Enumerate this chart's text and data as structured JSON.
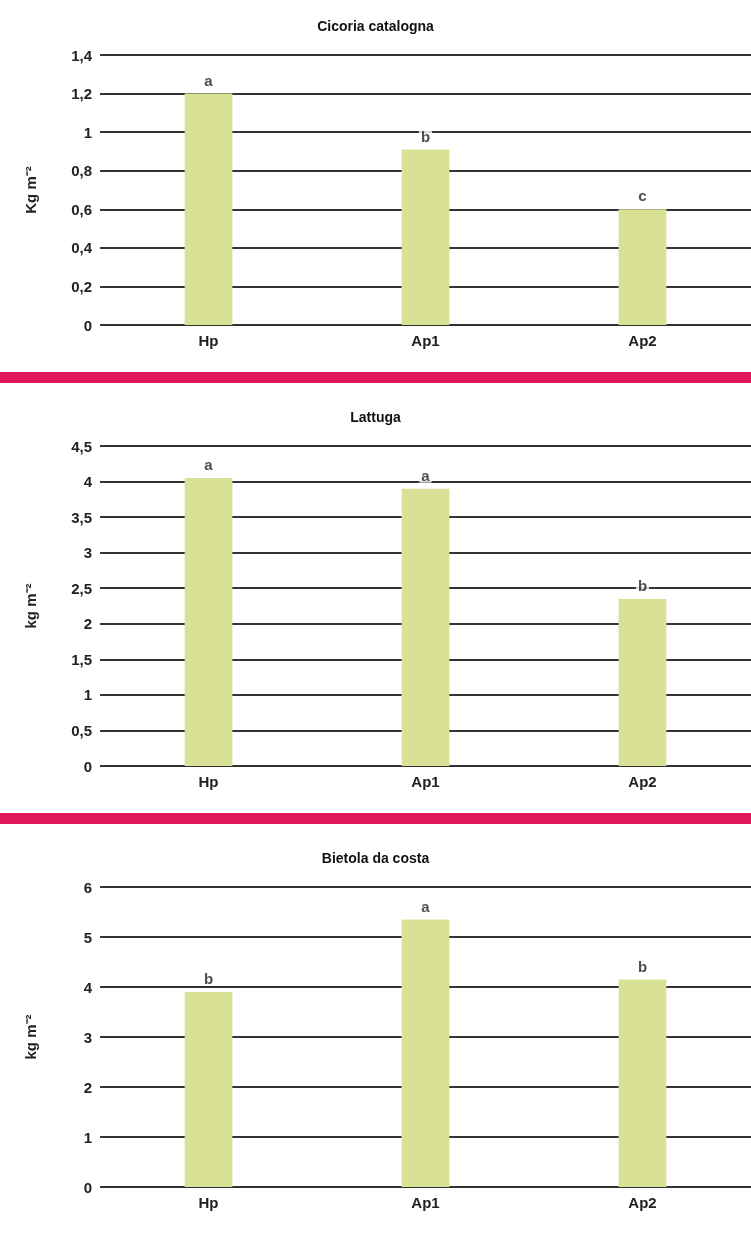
{
  "chart_data": [
    {
      "type": "bar",
      "title": "Cicoria catalogna",
      "ylabel": "Kg m⁻²",
      "categories": [
        "Hp",
        "Ap1",
        "Ap2"
      ],
      "values": [
        1.2,
        0.91,
        0.6
      ],
      "color": "#d9e197",
      "ylim": [
        0,
        1.4
      ],
      "yticks": [
        0,
        {
          "value": 0.2,
          "label": "0,2"
        },
        {
          "value": 0.4,
          "label": "0,4"
        },
        {
          "value": 0.6,
          "label": "0,6"
        },
        {
          "value": 0.8,
          "label": "0,8"
        },
        1,
        {
          "value": 1.2,
          "label": "1,2"
        },
        {
          "value": 1.4,
          "label": "1,4"
        }
      ],
      "grid": "y",
      "annotations": [
        {
          "text": "a",
          "x": "Hp",
          "y": 1.2
        },
        {
          "text": "b",
          "x": "Ap1",
          "y": 0.91
        },
        {
          "text": "c",
          "x": "Ap2",
          "y": 0.6
        }
      ]
    },
    {
      "type": "bar",
      "title": "Lattuga",
      "ylabel": "kg m⁻²",
      "categories": [
        "Hp",
        "Ap1",
        "Ap2"
      ],
      "values": [
        4.05,
        3.9,
        2.35
      ],
      "color": "#d9e197",
      "ylim": [
        0,
        4.5
      ],
      "yticks": [
        0,
        {
          "value": 0.5,
          "label": "0,5"
        },
        1,
        {
          "value": 1.5,
          "label": "1,5"
        },
        2,
        {
          "value": 2.5,
          "label": "2,5"
        },
        3,
        {
          "value": 3.5,
          "label": "3,5"
        },
        4,
        {
          "value": 4.5,
          "label": "4,5"
        }
      ],
      "grid": "y",
      "annotations": [
        {
          "text": "a",
          "x": "Hp",
          "y": 4.05
        },
        {
          "text": "a",
          "x": "Ap1",
          "y": 3.9
        },
        {
          "text": "b",
          "x": "Ap2",
          "y": 2.35
        }
      ]
    },
    {
      "type": "bar",
      "title": "Bietola da costa",
      "ylabel": "kg m⁻²",
      "categories": [
        "Hp",
        "Ap1",
        "Ap2"
      ],
      "values": [
        3.9,
        5.35,
        4.15
      ],
      "color": "#d9e197",
      "ylim": [
        0,
        6
      ],
      "yticks": [
        0,
        1,
        2,
        3,
        4,
        5,
        6
      ],
      "grid": "y",
      "annotations": [
        {
          "text": "b",
          "x": "Hp",
          "y": 3.9
        },
        {
          "text": "a",
          "x": "Ap1",
          "y": 5.35
        },
        {
          "text": "b",
          "x": "Ap2",
          "y": 4.15
        }
      ]
    }
  ]
}
